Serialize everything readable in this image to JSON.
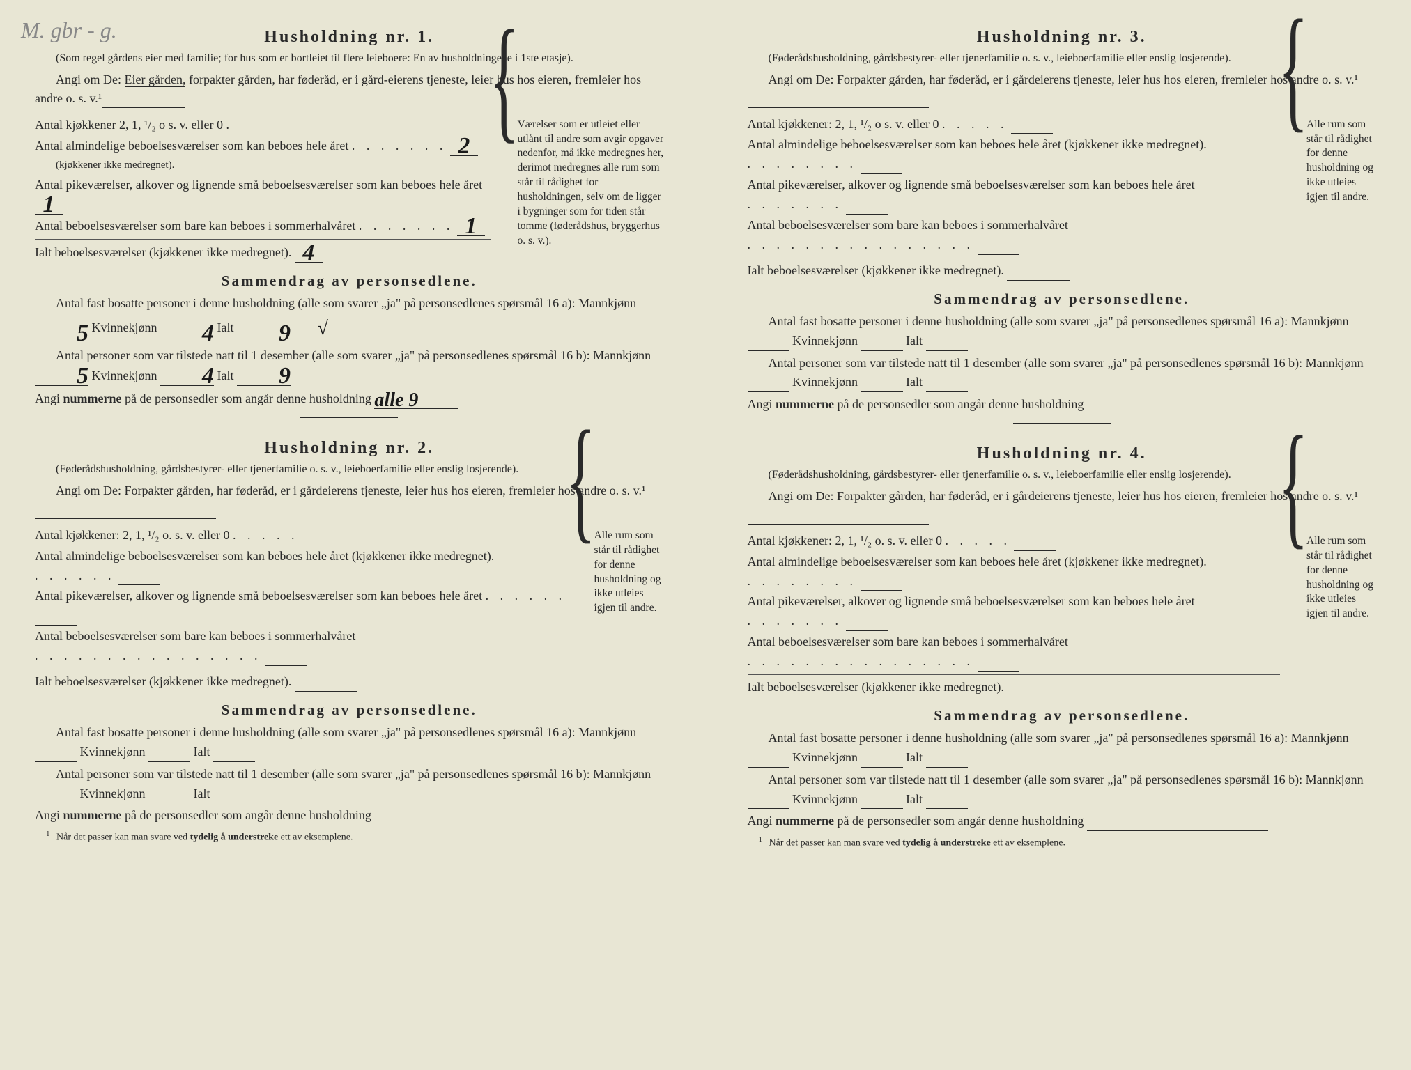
{
  "handwritten_top": "M. gbr - g.",
  "households": [
    {
      "title": "Husholdning nr. 1.",
      "subtitle": "(Som regel gårdens eier med familie; for hus som er bortleiet til flere leieboere: En av husholdningene i 1ste etasje).",
      "instr_prefix": "Angi om De: ",
      "instr_underlined": "Eier gården,",
      "instr_rest": " forpakter gården, har føderåd, er i gård-eierens tjeneste, leier hus hos eieren, fremleier hos andre o. s. v.¹",
      "rooms": {
        "row1": "Antal kjøkkener 2, 1, ¹/₂ o s. v. eller 0",
        "row2": "Antal almindelige beboelsesværelser som kan beboes hele året",
        "row2sub": "(kjøkkener ikke medregnet).",
        "row3": "Antal pikeværelser, alkover og lignende små beboelsesværelser som kan beboes hele året",
        "row4": "Antal beboelsesværelser som bare kan beboes i sommerhalvåret",
        "total": "Ialt beboelsesværelser (kjøkkener ikke medregnet).",
        "val1": "",
        "val2": "2",
        "val3": "1",
        "val4": "1",
        "valtotal": "4"
      },
      "side_note": "Værelser som er utleiet eller utlånt til andre som avgir opgaver nedenfor, må ikke medregnes her, derimot medregnes alle rum som står til rådighet for husholdningen, selv om de ligger i bygninger som for tiden står tomme (føderådshus, bryggerhus o. s. v.).",
      "summary_title": "Sammendrag av personsedlene.",
      "sum1_text": "Antal fast bosatte personer i denne husholdning (alle som svarer „ja\" på personsedlenes spørsmål 16 a): Mannkjønn",
      "sum1_m": "5",
      "sum1_k": "4",
      "sum1_t": "9",
      "sum2_text": "Antal personer som var tilstede natt til 1 desember (alle som svarer „ja\" på personsedlenes spørsmål 16 b): Mannkjønn",
      "sum2_m": "5",
      "sum2_k": "4",
      "sum2_t": "9",
      "nums_label": "Angi nummerne på de personsedler som angår denne husholdning",
      "nums_val": "alle 9",
      "has_check": true
    },
    {
      "title": "Husholdning nr. 2.",
      "subtitle": "(Føderådshusholdning, gårdsbestyrer- eller tjenerfamilie o. s. v., leieboerfamilie eller enslig losjerende).",
      "instr_prefix": "Angi om De: Forpakter gården, har føderåd, er i gårdeierens tjeneste, leier hus hos eieren, fremleier hos andre o. s. v.¹",
      "rooms": {
        "row1": "Antal kjøkkener: 2, 1, ¹/₂ o. s. v. eller 0",
        "row2": "Antal almindelige beboelsesværelser som kan beboes hele året (kjøkkener ikke medregnet).",
        "row3": "Antal pikeværelser, alkover og lignende små beboelsesværelser som kan beboes hele året",
        "row4": "Antal beboelsesværelser som bare kan beboes i sommerhalvåret",
        "total": "Ialt beboelsesværelser (kjøkkener ikke medregnet)."
      },
      "side_note": "Alle rum som står til rådighet for denne husholdning og ikke utleies igjen til andre.",
      "summary_title": "Sammendrag av personsedlene.",
      "sum1_text": "Antal fast bosatte personer i denne husholdning (alle som svarer „ja\" på personsedlenes spørsmål 16 a): Mannkjønn",
      "sum2_text": "Antal personer som var tilstede natt til 1 desember (alle som svarer „ja\" på personsedlenes spørsmål 16 b): Mannkjønn",
      "nums_label": "Angi nummerne på de personsedler som angår denne husholdning"
    },
    {
      "title": "Husholdning nr. 3.",
      "subtitle": "(Føderådshusholdning, gårdsbestyrer- eller tjenerfamilie o. s. v., leieboerfamilie eller enslig losjerende).",
      "instr_prefix": "Angi om De: Forpakter gården, har føderåd, er i gårdeierens tjeneste, leier hus hos eieren, fremleier hos andre o. s. v.¹",
      "rooms": {
        "row1": "Antal kjøkkener: 2, 1, ¹/₂ o s. v. eller 0",
        "row2": "Antal almindelige beboelsesværelser som kan beboes hele året (kjøkkener ikke medregnet).",
        "row3": "Antal pikeværelser, alkover og lignende små beboelsesværelser som kan beboes hele året",
        "row4": "Antal beboelsesværelser som bare kan beboes i sommerhalvåret",
        "total": "Ialt beboelsesværelser (kjøkkener ikke medregnet)."
      },
      "side_note": "Alle rum som står til rådighet for denne husholdning og ikke utleies igjen til andre.",
      "summary_title": "Sammendrag av personsedlene.",
      "sum1_text": "Antal fast bosatte personer i denne husholdning (alle som svarer „ja\" på personsedlenes spørsmål 16 a): Mannkjønn",
      "sum2_text": "Antal personer som var tilstede natt til 1 desember (alle som svarer „ja\" på personsedlenes spørsmål 16 b): Mannkjønn",
      "nums_label": "Angi nummerne på de personsedler som angår denne husholdning"
    },
    {
      "title": "Husholdning nr. 4.",
      "subtitle": "(Føderådshusholdning, gårdsbestyrer- eller tjenerfamilie o. s. v., leieboerfamilie eller enslig losjerende).",
      "instr_prefix": "Angi om De: Forpakter gården, har føderåd, er i gårdeierens tjeneste, leier hus hos eieren, fremleier hos andre o. s. v.¹",
      "rooms": {
        "row1": "Antal kjøkkener: 2, 1, ¹/₂ o. s. v. eller 0",
        "row2": "Antal almindelige beboelsesværelser som kan beboes hele året (kjøkkener ikke medregnet).",
        "row3": "Antal pikeværelser, alkover og lignende små beboelsesværelser som kan beboes hele året",
        "row4": "Antal beboelsesværelser som bare kan beboes i sommerhalvåret",
        "total": "Ialt beboelsesværelser (kjøkkener ikke medregnet)."
      },
      "side_note": "Alle rum som står til rådighet for denne husholdning og ikke utleies igjen til andre.",
      "summary_title": "Sammendrag av personsedlene.",
      "sum1_text": "Antal fast bosatte personer i denne husholdning (alle som svarer „ja\" på personsedlenes spørsmål 16 a): Mannkjønn",
      "sum2_text": "Antal personer som var tilstede natt til 1 desember (alle som svarer „ja\" på personsedlenes spørsmål 16 b): Mannkjønn",
      "nums_label": "Angi nummerne på de personsedler som angår denne husholdning"
    }
  ],
  "labels": {
    "kvinne": " Kvinnekjønn",
    "ialt": " Ialt"
  },
  "footnote": "Når det passer kan man svare ved tydelig å understreke ett av eksemplene.",
  "footnote_bold1": "tydelig å understreke",
  "colors": {
    "bg": "#e8e6d4",
    "text": "#2a2a2a",
    "hw": "#1a1a1a",
    "note": "#888888"
  }
}
